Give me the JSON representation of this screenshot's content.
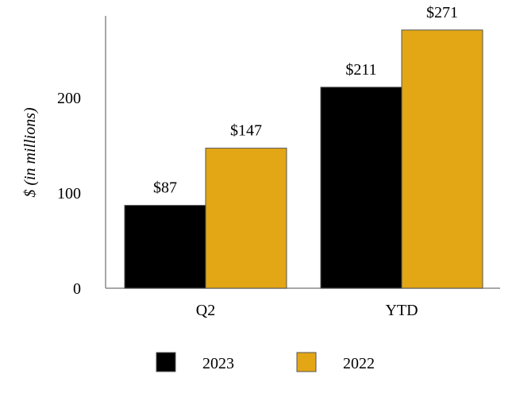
{
  "chart_data": {
    "type": "bar",
    "title": "",
    "xlabel": "",
    "ylabel": "$ (in millions)",
    "ylim": [
      0,
      280
    ],
    "yticks": [
      0,
      100,
      200
    ],
    "categories": [
      "Q2",
      "YTD"
    ],
    "series": [
      {
        "name": "2023",
        "color": "#000000",
        "values": [
          87,
          211
        ],
        "labels": [
          "$87",
          "$211"
        ]
      },
      {
        "name": "2022",
        "color": "#E3A615",
        "values": [
          147,
          271
        ],
        "labels": [
          "$147",
          "$271"
        ]
      }
    ],
    "legend_position": "bottom-center",
    "grid": false
  }
}
